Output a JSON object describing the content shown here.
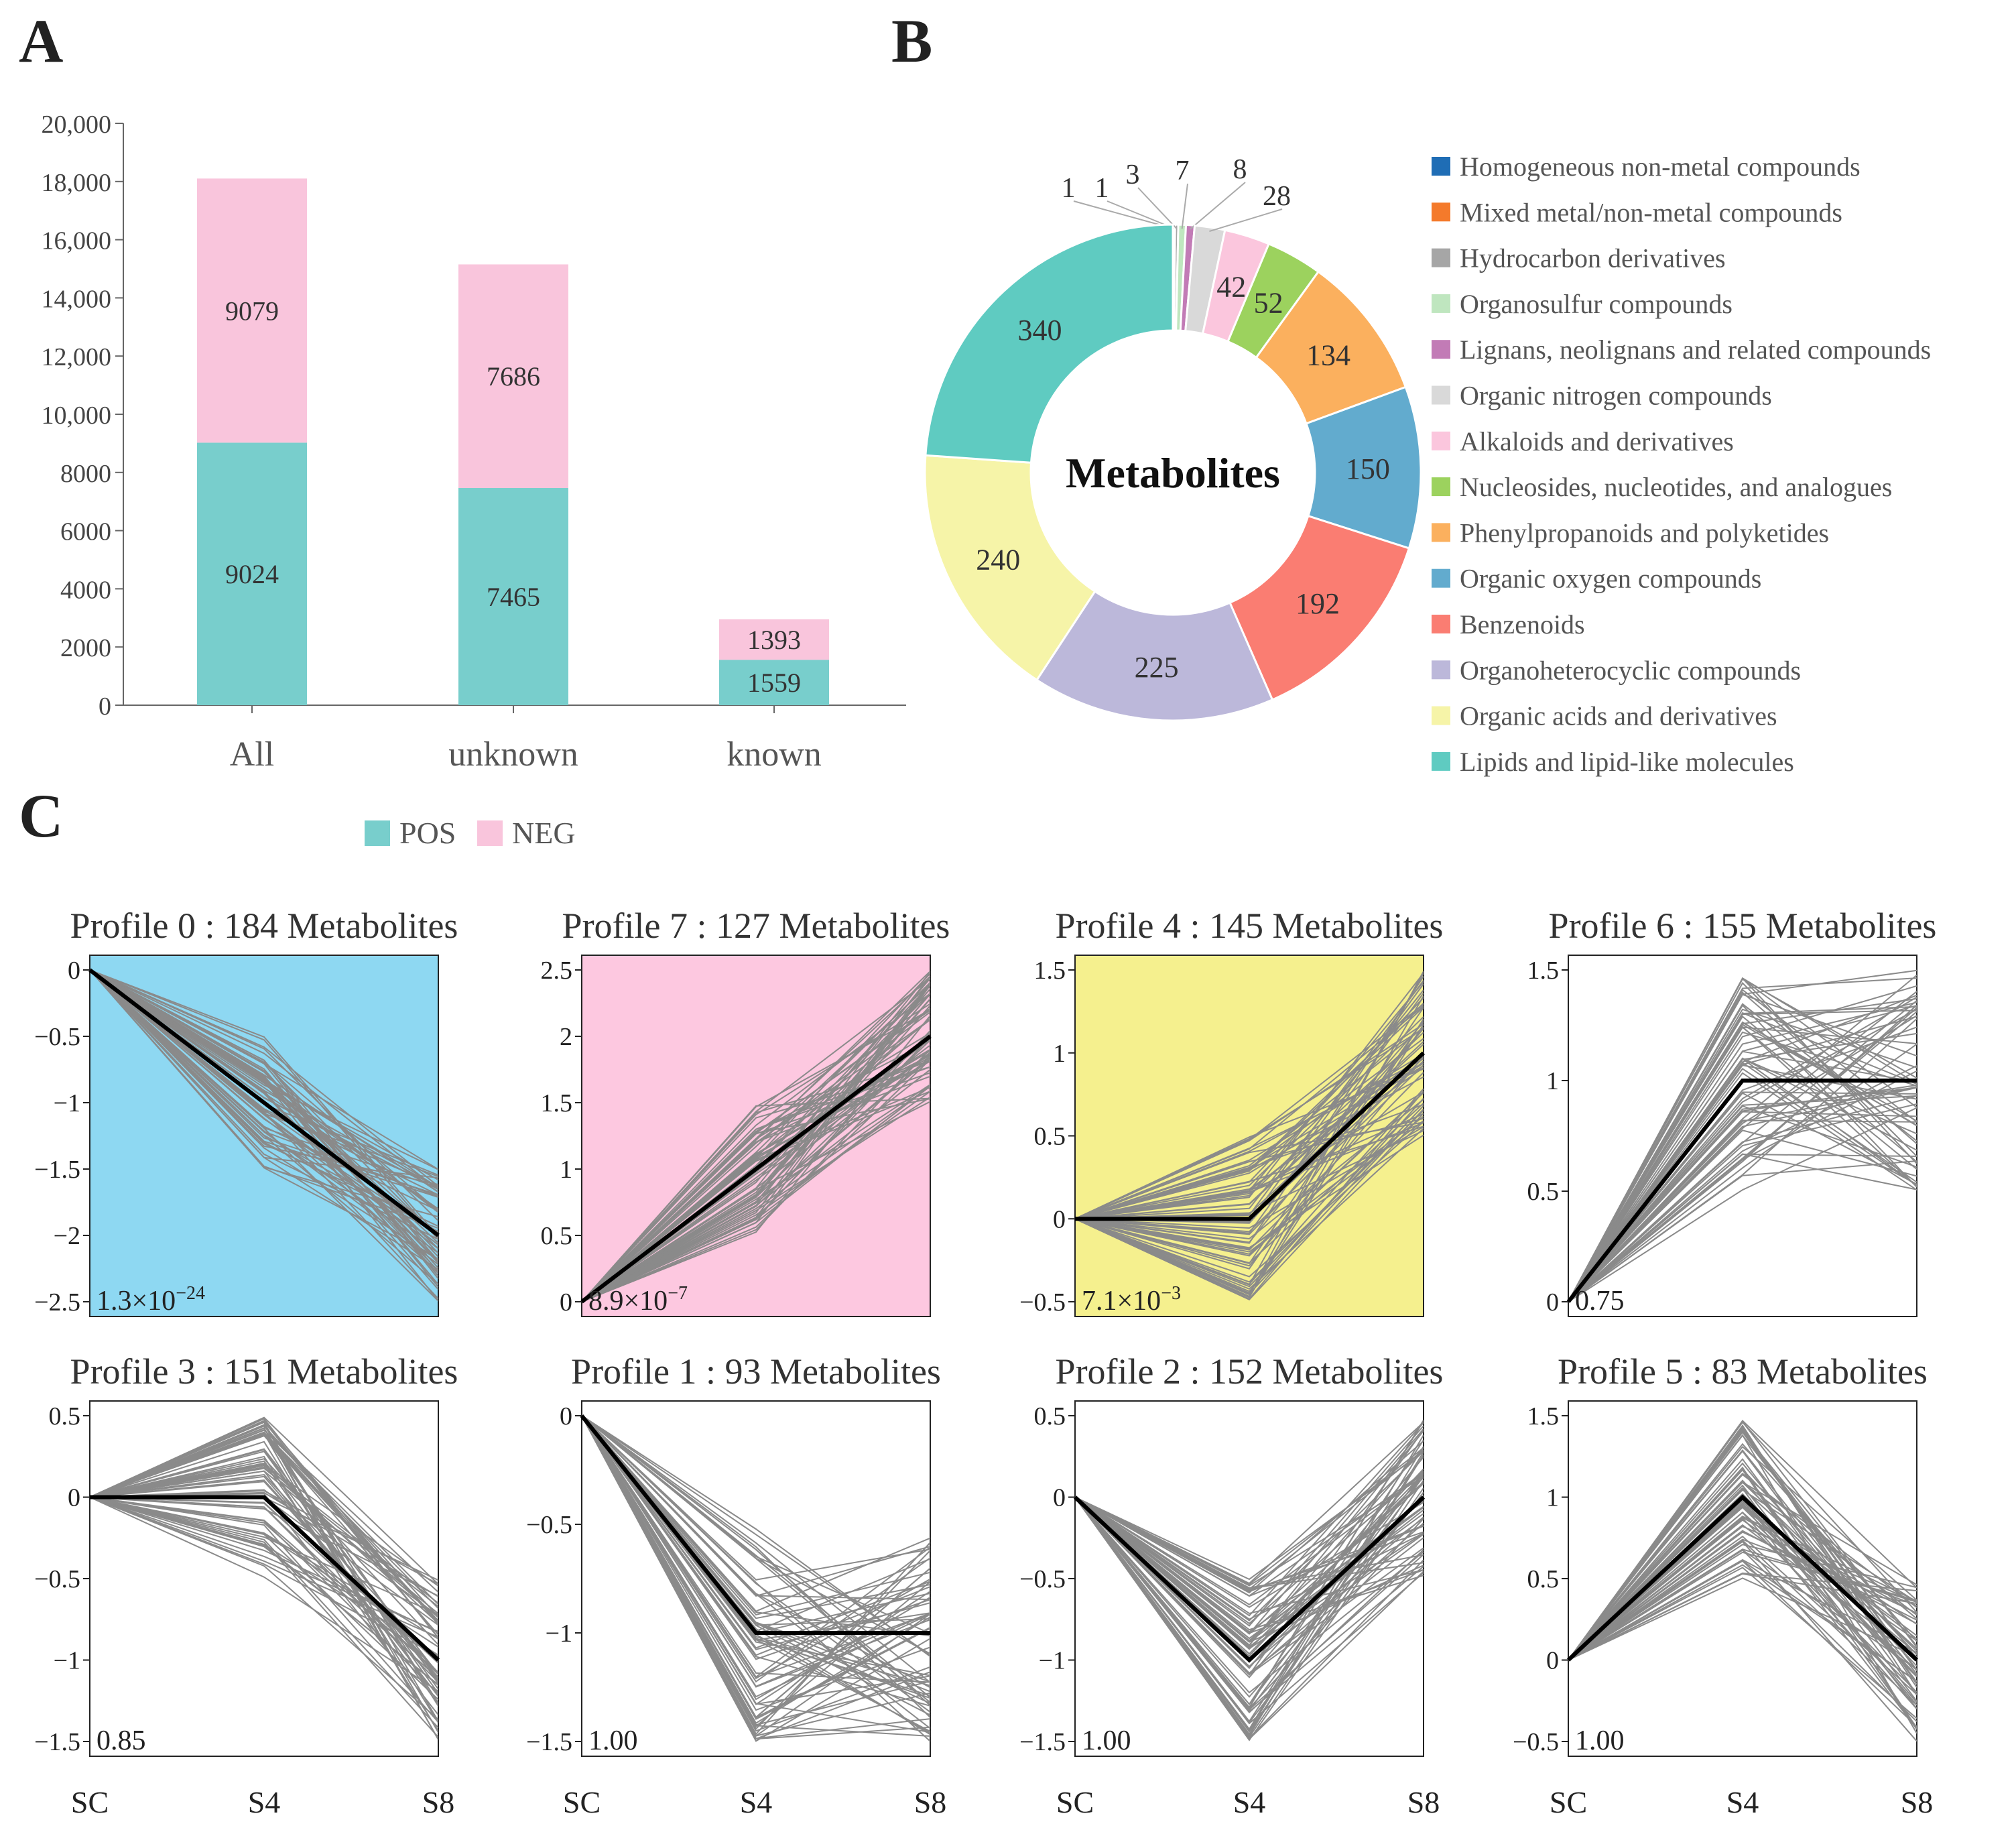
{
  "panels": {
    "a": "A",
    "b": "B",
    "c": "C"
  },
  "chart_data": [
    {
      "type": "bar",
      "stacked": true,
      "categories": [
        "All",
        "unknown",
        "known"
      ],
      "series": [
        {
          "name": "POS",
          "values": [
            9024,
            7465,
            1559
          ],
          "color": "#78CECC"
        },
        {
          "name": "NEG",
          "values": [
            9079,
            7686,
            1393
          ],
          "color": "#F9C5DC"
        }
      ],
      "ylim": [
        0,
        20000
      ],
      "yticks": [
        "0",
        "2000",
        "4000",
        "6000",
        "8000",
        "10,000",
        "12,000",
        "14,000",
        "16,000",
        "18,000",
        "20,000"
      ],
      "legend": [
        "POS",
        "NEG"
      ],
      "legend_position": "bottom"
    },
    {
      "type": "pie",
      "donut": true,
      "center_label": "Metabolites",
      "legend_position": "right",
      "slices": [
        {
          "label": "Homogeneous non-metal compounds",
          "value": 1,
          "color": "#1F6DB5"
        },
        {
          "label": "Mixed metal/non-metal compounds",
          "value": 1,
          "color": "#F47A2B"
        },
        {
          "label": "Hydrocarbon derivatives",
          "value": 3,
          "color": "#A6A6A6"
        },
        {
          "label": "Organosulfur compounds",
          "value": 7,
          "color": "#BFE6BF"
        },
        {
          "label": "Lignans, neolignans and related compounds",
          "value": 8,
          "color": "#C27BB6"
        },
        {
          "label": "Organic nitrogen compounds",
          "value": 28,
          "color": "#D9D9D9"
        },
        {
          "label": "Alkaloids and derivatives",
          "value": 42,
          "color": "#FBC6DD"
        },
        {
          "label": "Nucleosides, nucleotides, and analogues",
          "value": 52,
          "color": "#9CD25E"
        },
        {
          "label": "Phenylpropanoids and polyketides",
          "value": 134,
          "color": "#FBB05E"
        },
        {
          "label": "Organic oxygen compounds",
          "value": 150,
          "color": "#62ABCE"
        },
        {
          "label": "Benzenoids",
          "value": 192,
          "color": "#FA7D72"
        },
        {
          "label": "Organoheterocyclic compounds",
          "value": 225,
          "color": "#BCB8DA"
        },
        {
          "label": "Organic acids and derivatives",
          "value": 240,
          "color": "#F6F4A8"
        },
        {
          "label": "Lipids and lipid-like molecules",
          "value": 340,
          "color": "#5FCBC1"
        }
      ]
    },
    {
      "type": "line",
      "description": "Trend profiles",
      "x": [
        "SC",
        "S4",
        "S8"
      ],
      "profiles": [
        {
          "title": "Profile 0 : 184 Metabolites",
          "profile_values": [
            0,
            -1,
            -2
          ],
          "pvalue": "1.3×10",
          "pexp": "−24",
          "bg": "#8ED8F2",
          "ylim": [
            -2.5,
            0
          ],
          "yticks": [
            0,
            -0.5,
            -1,
            -1.5,
            -2,
            -2.5
          ],
          "ytick_labels": [
            "0",
            "−0.5",
            "−1",
            "−1.5",
            "−2",
            "−2.5"
          ],
          "s4_range": [
            -1.5,
            -0.5
          ],
          "s8_range": [
            -2.5,
            -1.5
          ]
        },
        {
          "title": "Profile 7 : 127 Metabolites",
          "profile_values": [
            0,
            1,
            2
          ],
          "pvalue": "8.9×10",
          "pexp": "−7",
          "bg": "#FDC8E0",
          "ylim": [
            0,
            2.5
          ],
          "yticks": [
            2.5,
            2,
            1.5,
            1,
            0.5,
            0
          ],
          "ytick_labels": [
            "2.5",
            "2",
            "1.5",
            "1",
            "0.5",
            "0"
          ],
          "s4_range": [
            0.5,
            1.5
          ],
          "s8_range": [
            1.5,
            2.5
          ]
        },
        {
          "title": "Profile 4 : 145 Metabolites",
          "profile_values": [
            0,
            0,
            1
          ],
          "pvalue": "7.1×10",
          "pexp": "−3",
          "bg": "#F5F08E",
          "ylim": [
            -0.5,
            1.5
          ],
          "yticks": [
            1.5,
            1,
            0.5,
            0,
            -0.5
          ],
          "ytick_labels": [
            "1.5",
            "1",
            "0.5",
            "0",
            "−0.5"
          ],
          "s4_range": [
            -0.5,
            0.5
          ],
          "s8_range": [
            0.5,
            1.5
          ]
        },
        {
          "title": "Profile 6 : 155 Metabolites",
          "profile_values": [
            0,
            1,
            1
          ],
          "pvalue": "0.75",
          "pexp": "",
          "bg": "#ffffff",
          "ylim": [
            0,
            1.5
          ],
          "yticks": [
            1.5,
            1,
            0.5,
            0
          ],
          "ytick_labels": [
            "1.5",
            "1",
            "0.5",
            "0"
          ],
          "s4_range": [
            0.5,
            1.5
          ],
          "s8_range": [
            0.5,
            1.5
          ]
        },
        {
          "title": "Profile 3 : 151 Metabolites",
          "profile_values": [
            0,
            0,
            -1
          ],
          "pvalue": "0.85",
          "pexp": "",
          "bg": "#ffffff",
          "ylim": [
            -1.5,
            0.5
          ],
          "yticks": [
            0.5,
            0,
            -0.5,
            -1,
            -1.5
          ],
          "ytick_labels": [
            "0.5",
            "0",
            "−0.5",
            "−1",
            "−1.5"
          ],
          "s4_range": [
            -0.5,
            0.5
          ],
          "s8_range": [
            -1.5,
            -0.5
          ]
        },
        {
          "title": "Profile 1 : 93 Metabolites",
          "profile_values": [
            0,
            -1,
            -1
          ],
          "pvalue": "1.00",
          "pexp": "",
          "bg": "#ffffff",
          "ylim": [
            -1.5,
            0
          ],
          "yticks": [
            0,
            -0.5,
            -1,
            -1.5
          ],
          "ytick_labels": [
            "0",
            "−0.5",
            "−1",
            "−1.5"
          ],
          "s4_range": [
            -1.5,
            -0.5
          ],
          "s8_range": [
            -1.5,
            -0.5
          ]
        },
        {
          "title": "Profile 2 : 152 Metabolites",
          "profile_values": [
            0,
            -1,
            0
          ],
          "pvalue": "1.00",
          "pexp": "",
          "bg": "#ffffff",
          "ylim": [
            -1.5,
            0.5
          ],
          "yticks": [
            0.5,
            0,
            -0.5,
            -1,
            -1.5
          ],
          "ytick_labels": [
            "0.5",
            "0",
            "−0.5",
            "−1",
            "−1.5"
          ],
          "s4_range": [
            -1.5,
            -0.5
          ],
          "s8_range": [
            -0.5,
            0.5
          ]
        },
        {
          "title": "Profile 5 : 83 Metabolites",
          "profile_values": [
            0,
            1,
            0
          ],
          "pvalue": "1.00",
          "pexp": "",
          "bg": "#ffffff",
          "ylim": [
            -0.5,
            1.5
          ],
          "yticks": [
            1.5,
            1,
            0.5,
            0,
            -0.5
          ],
          "ytick_labels": [
            "1.5",
            "1",
            "0.5",
            "0",
            "−0.5"
          ],
          "s4_range": [
            0.5,
            1.5
          ],
          "s8_range": [
            -0.5,
            0.5
          ]
        }
      ]
    }
  ]
}
